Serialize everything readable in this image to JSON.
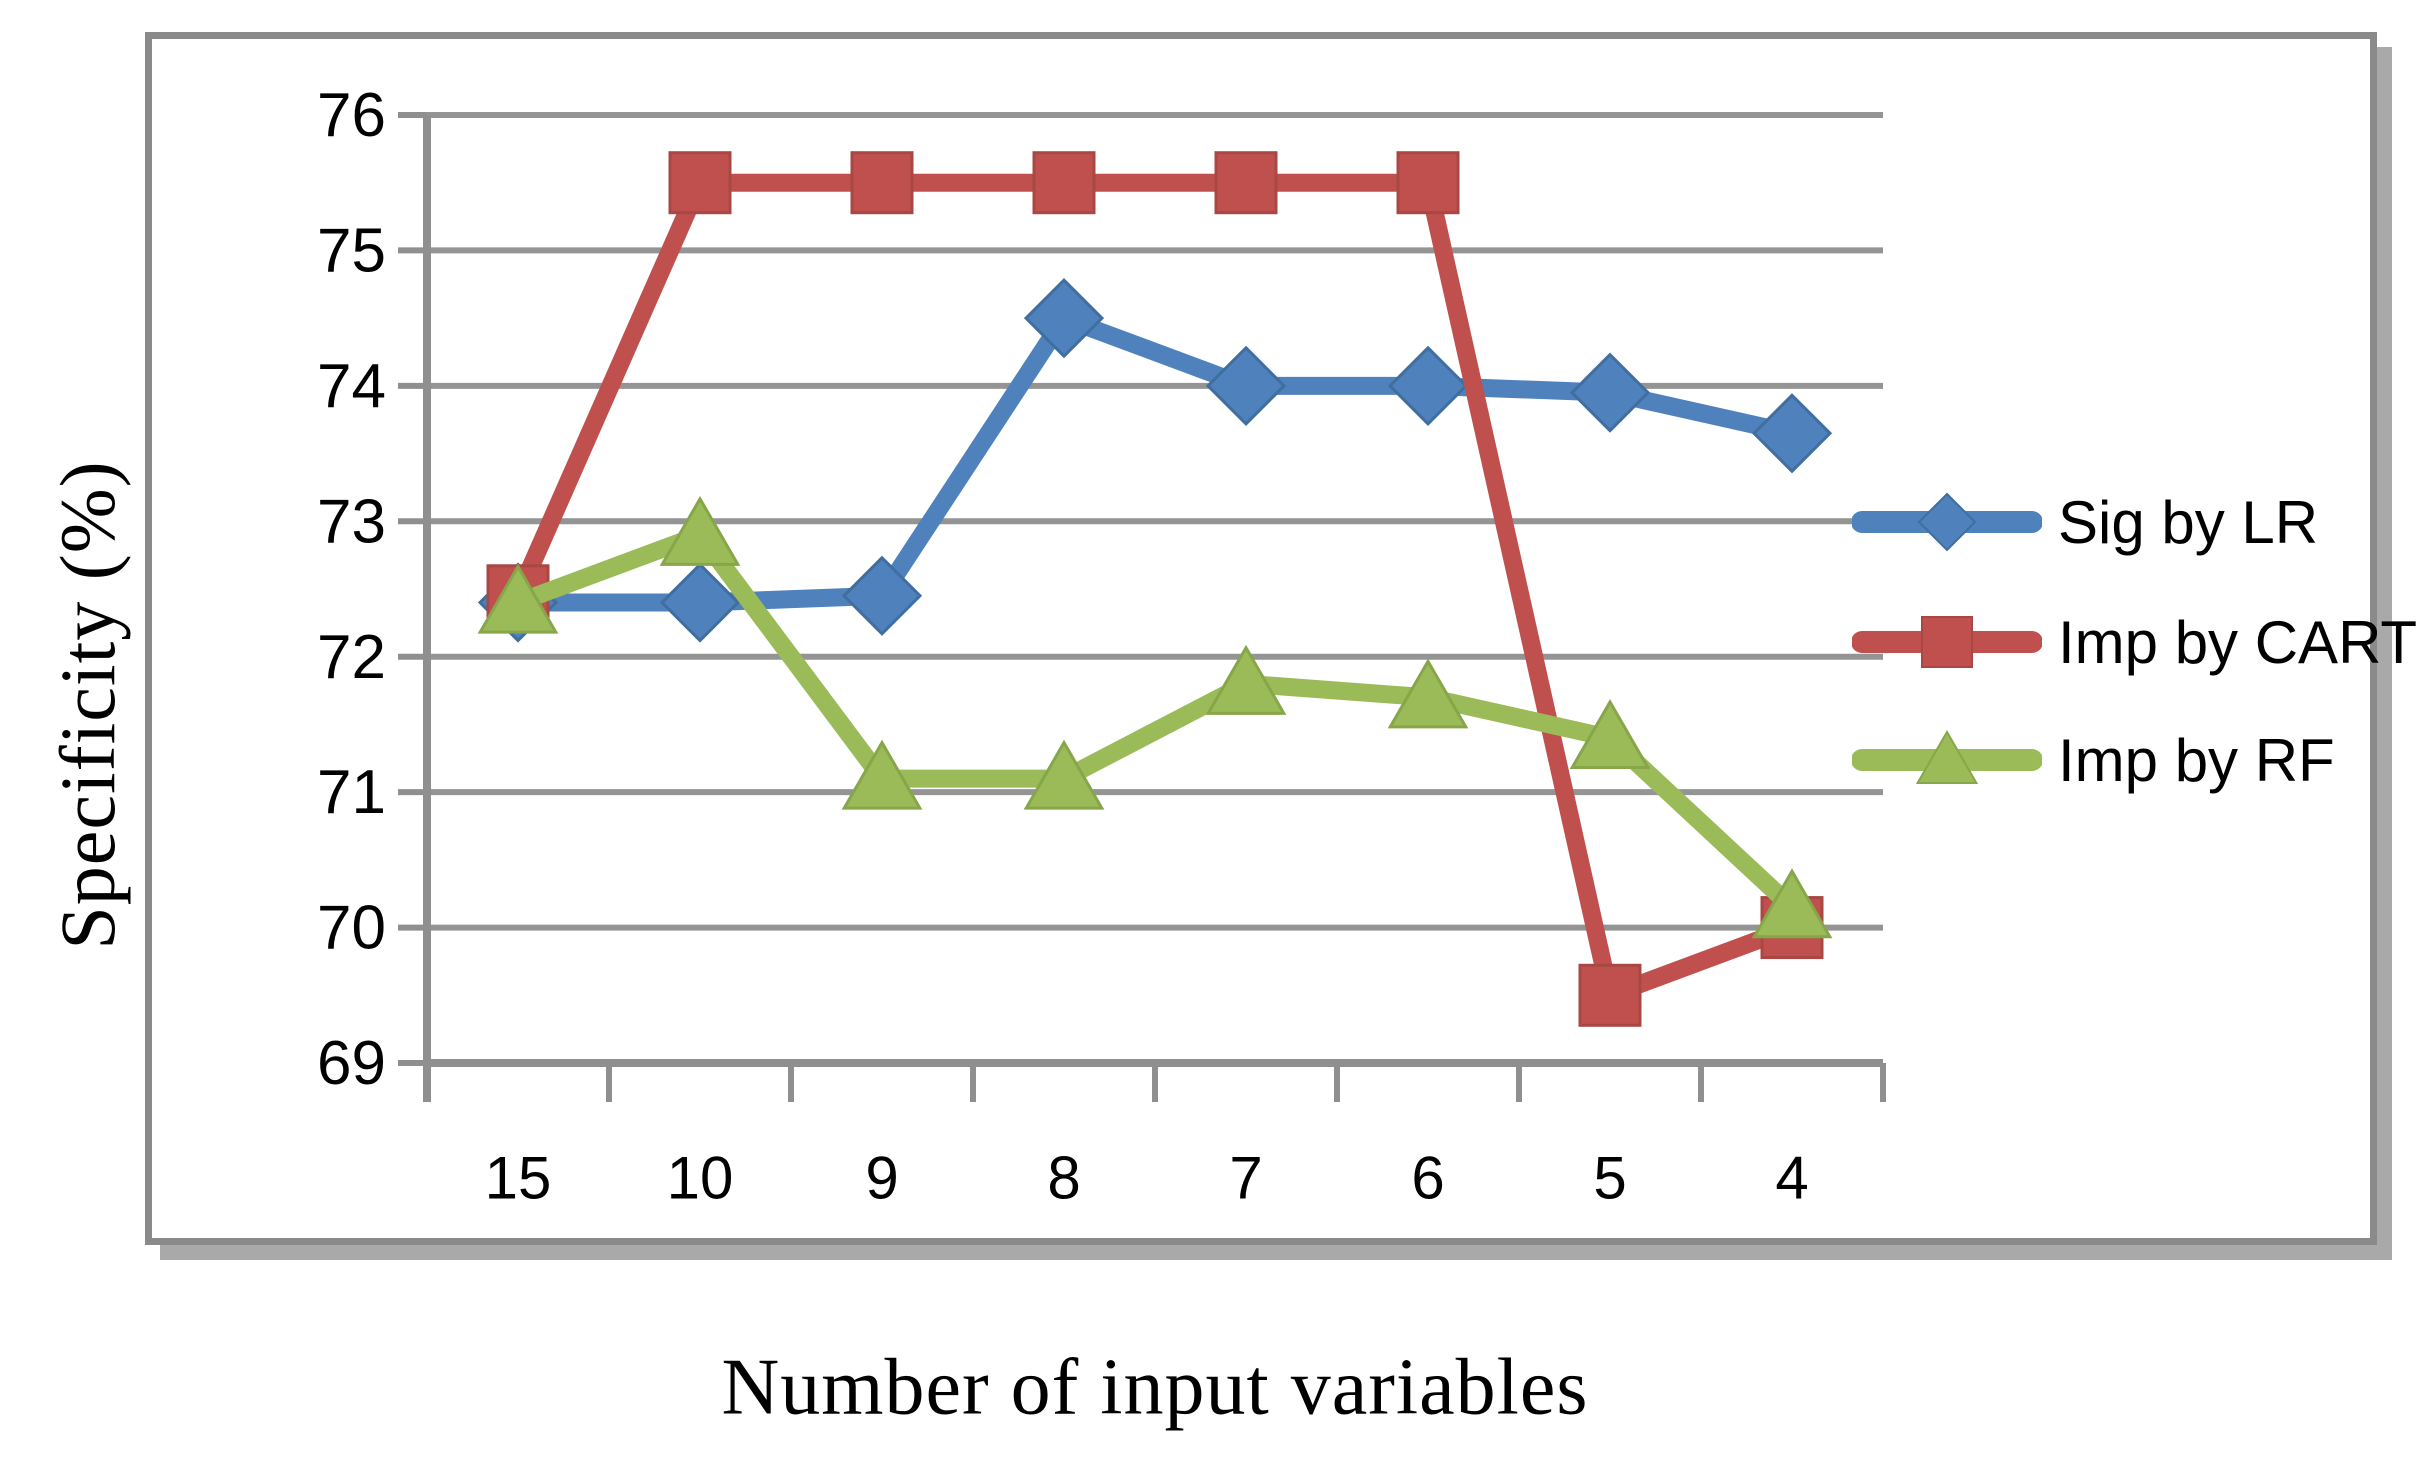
{
  "chart_data": {
    "type": "line",
    "title": "",
    "xlabel": "Number of input variables",
    "ylabel": "Specificity (%)",
    "categories": [
      "15",
      "10",
      "9",
      "8",
      "7",
      "6",
      "5",
      "4"
    ],
    "yticks": [
      76,
      75,
      74,
      73,
      72,
      71,
      70,
      69
    ],
    "ylim": [
      69,
      76
    ],
    "grid": "horizontal-gridlines",
    "legend_position": "right-middle",
    "series": [
      {
        "name": "Sig by LR",
        "marker": "diamond",
        "color": "#4F81BD",
        "edge_color": "#3F6E9F",
        "values": [
          72.4,
          72.4,
          72.45,
          74.5,
          74.0,
          74.0,
          73.95,
          73.65
        ]
      },
      {
        "name": "Imp by CART",
        "marker": "square",
        "color": "#C0504D",
        "edge_color": "#A84744",
        "values": [
          72.45,
          75.5,
          75.5,
          75.5,
          75.5,
          75.5,
          69.5,
          70.0
        ]
      },
      {
        "name": "Imp by RF",
        "marker": "triangle",
        "color": "#9BBB59",
        "edge_color": "#87A64A",
        "values": [
          72.4,
          72.9,
          71.1,
          71.1,
          71.8,
          71.7,
          71.4,
          70.15
        ]
      }
    ]
  },
  "colors": {
    "background": "#FFFFFF",
    "gridline": "#949494",
    "axis": "#8F8F8F",
    "frame_border": "#8A8A8A",
    "frame_shadow": "#A9A9A9",
    "text": "#000000"
  }
}
